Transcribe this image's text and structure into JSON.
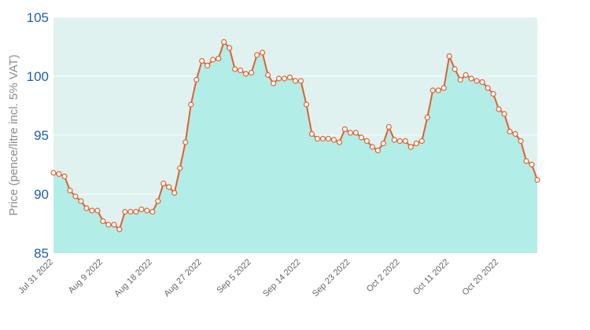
{
  "chart_data": {
    "type": "area",
    "ylabel": "Price (pence/litre incl. 5% VAT)",
    "ylim": [
      85,
      105
    ],
    "yticks": [
      "85",
      "90",
      "95",
      "100",
      "105"
    ],
    "xtick_labels": [
      "Jul 31 2022",
      "Aug 9 2022",
      "Aug 18 2022",
      "Aug 27 2022",
      "Sep 5 2022",
      "Sep 14 2022",
      "Sep 23 2022",
      "Oct 2 2022",
      "Oct 11 2022",
      "Oct 20 2022"
    ],
    "x_start": "2022-07-31",
    "values": [
      91.8,
      91.7,
      91.5,
      90.3,
      89.8,
      89.4,
      88.8,
      88.6,
      88.6,
      87.7,
      87.4,
      87.4,
      87.0,
      88.5,
      88.5,
      88.5,
      88.7,
      88.6,
      88.5,
      89.4,
      90.9,
      90.6,
      90.1,
      92.2,
      94.4,
      97.6,
      99.7,
      101.3,
      100.9,
      101.4,
      101.5,
      102.9,
      102.4,
      100.6,
      100.5,
      100.2,
      100.3,
      101.8,
      102.0,
      100.1,
      99.4,
      99.8,
      99.8,
      99.9,
      99.6,
      99.6,
      97.6,
      95.1,
      94.7,
      94.7,
      94.7,
      94.6,
      94.4,
      95.5,
      95.2,
      95.2,
      94.8,
      94.5,
      94.0,
      93.7,
      94.3,
      95.7,
      94.6,
      94.5,
      94.5,
      94.0,
      94.3,
      94.5,
      96.5,
      98.8,
      98.8,
      99.0,
      101.7,
      100.6,
      99.7,
      100.1,
      99.8,
      99.6,
      99.5,
      99.0,
      98.5,
      97.2,
      96.8,
      95.3,
      95.1,
      94.5,
      92.8,
      92.5,
      91.2
    ],
    "colors": {
      "area_fill": "#b2ede8",
      "plot_background": "#dff2f0",
      "line": "#e06030",
      "marker_fill": "#ffffff",
      "marker_stroke": "#e06030",
      "ytick": "#1f5fa8"
    },
    "grid": true,
    "markers": true
  }
}
